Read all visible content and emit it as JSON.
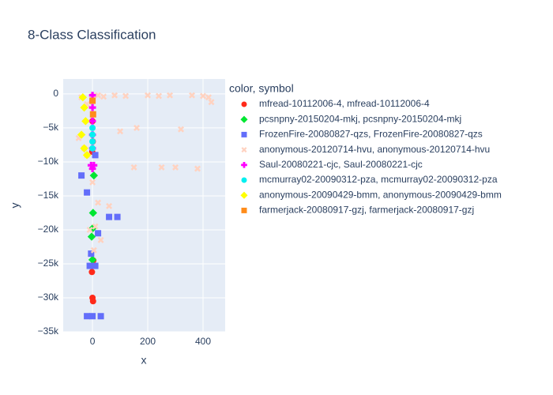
{
  "chart_data": {
    "type": "scatter",
    "title": "8-Class Classification",
    "x_label": "x",
    "y_label": "y",
    "legend_title": "color, symbol",
    "xlim": [
      -106,
      480
    ],
    "xticks": [
      0,
      200,
      400
    ],
    "ylim": [
      -35000,
      2200
    ],
    "yticks": [
      {
        "value": -35000,
        "label": "−35k"
      },
      {
        "value": -30000,
        "label": "−30k"
      },
      {
        "value": -25000,
        "label": "−25k"
      },
      {
        "value": -20000,
        "label": "−20k"
      },
      {
        "value": -15000,
        "label": "−15k"
      },
      {
        "value": -10000,
        "label": "−10k"
      },
      {
        "value": -5000,
        "label": "−5k"
      },
      0
    ],
    "grid": true,
    "series": [
      {
        "name": "mfread-10112006-4, mfread-10112006-4",
        "color": "#ff2a1a",
        "symbol": "circle",
        "x": [
          0,
          2,
          -2,
          3,
          0,
          0,
          1,
          -1
        ],
        "values": [
          -30000,
          -30500,
          -26200,
          -24500,
          -1000,
          -4000,
          -7000,
          -8500
        ]
      },
      {
        "name": "pcsnpny-20150204-mkj, pcsnpny-20150204-mkj",
        "color": "#00e632",
        "symbol": "diamond",
        "x": [
          0,
          -3,
          2,
          0,
          5
        ],
        "values": [
          -24400,
          -21000,
          -17500,
          -19800,
          -12000
        ]
      },
      {
        "name": "FrozenFire-20080827-qzs, FrozenFire-20080827-qzs",
        "color": "#636efa",
        "symbol": "square",
        "x": [
          -20,
          0,
          30,
          -10,
          10,
          60,
          90,
          -40,
          -20,
          10,
          -5,
          20
        ],
        "values": [
          -32700,
          -32700,
          -32700,
          -25300,
          -25300,
          -18100,
          -18100,
          -12000,
          -14500,
          -9000,
          -23500,
          -20500
        ]
      },
      {
        "name": "anonymous-20120714-hvu, anonymous-20120714-hvu",
        "color": "#ffd2c0",
        "symbol": "x",
        "x": [
          -40,
          -20,
          0,
          20,
          40,
          80,
          120,
          160,
          200,
          240,
          280,
          320,
          360,
          400,
          420,
          430,
          100,
          150,
          250,
          300,
          380,
          -50,
          -30,
          0,
          20,
          60,
          10,
          -10,
          30,
          5,
          -20
        ],
        "values": [
          -500,
          -1500,
          -300,
          -200,
          -400,
          -200,
          -300,
          -5000,
          -200,
          -300,
          -200,
          -5200,
          -200,
          -300,
          -500,
          -1200,
          -5500,
          -10800,
          -10800,
          -10800,
          -11000,
          -6500,
          -8000,
          -13000,
          -16000,
          -16500,
          -19500,
          -20000,
          -21500,
          -23000,
          -9000
        ]
      },
      {
        "name": "Saul-20080221-cjc, Saul-20080221-cjc",
        "color": "#ff00ff",
        "symbol": "cross",
        "x": [
          0,
          0,
          0,
          0,
          0,
          -5,
          5,
          0
        ],
        "values": [
          -200,
          -2000,
          -4000,
          -6000,
          -8000,
          -10500,
          -10500,
          -11000
        ]
      },
      {
        "name": "mcmurray02-20090312-pza, mcmurray02-20090312-pza",
        "color": "#00f0f0",
        "symbol": "circle",
        "x": [
          0,
          0,
          0,
          0
        ],
        "values": [
          -5000,
          -6000,
          -7000,
          -8000
        ]
      },
      {
        "name": "anonymous-20090429-bmm, anonymous-20090429-bmm",
        "color": "#ffff00",
        "symbol": "diamond",
        "x": [
          -35,
          -30,
          -25,
          -40,
          -30,
          -20
        ],
        "values": [
          -500,
          -2000,
          -4000,
          -6000,
          -8000,
          -9000
        ]
      },
      {
        "name": "farmerjack-20080917-gzj, farmerjack-20080917-gzj",
        "color": "#ff8c1a",
        "symbol": "square",
        "x": [
          0,
          2
        ],
        "values": [
          -1000,
          -3000
        ]
      }
    ]
  }
}
